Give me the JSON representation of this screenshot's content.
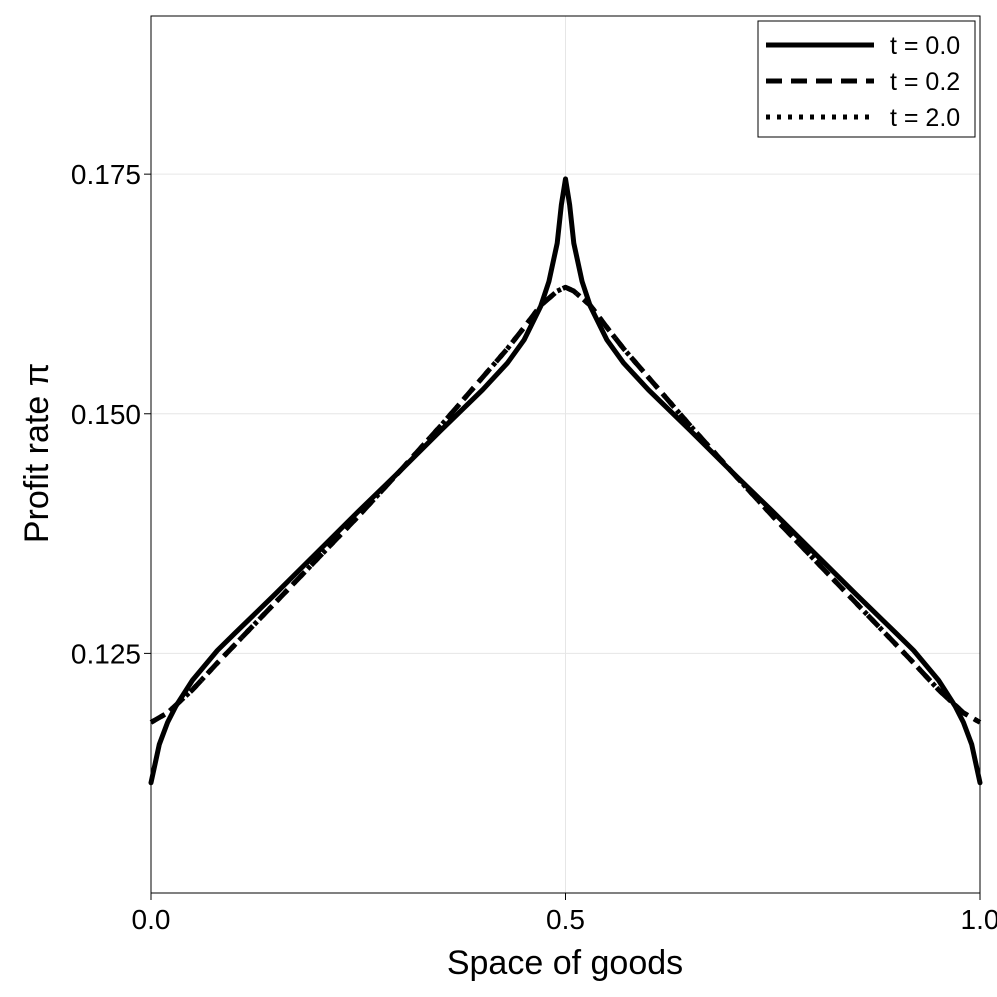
{
  "chart_data": {
    "type": "line",
    "xlabel": "Space of goods",
    "ylabel": "Profit rate π",
    "xlim": [
      0.0,
      1.0
    ],
    "ylim": [
      0.1,
      0.1915
    ],
    "xticks": [
      {
        "value": 0.0,
        "label": "0.0"
      },
      {
        "value": 0.5,
        "label": "0.5"
      },
      {
        "value": 1.0,
        "label": "1.0"
      }
    ],
    "yticks": [
      {
        "value": 0.125,
        "label": "0.125"
      },
      {
        "value": 0.15,
        "label": "0.150"
      },
      {
        "value": 0.175,
        "label": "0.175"
      }
    ],
    "grid": true,
    "legend_position": "top-right",
    "series": [
      {
        "name": "t = 0.0",
        "line_style": "solid",
        "color": "#000000",
        "points": [
          [
            0.0,
            0.1115
          ],
          [
            0.01,
            0.1155
          ],
          [
            0.02,
            0.1178
          ],
          [
            0.03,
            0.1195
          ],
          [
            0.05,
            0.1222
          ],
          [
            0.08,
            0.1253
          ],
          [
            0.1,
            0.127
          ],
          [
            0.15,
            0.1312
          ],
          [
            0.2,
            0.1355
          ],
          [
            0.25,
            0.1398
          ],
          [
            0.3,
            0.144
          ],
          [
            0.35,
            0.1483
          ],
          [
            0.4,
            0.1525
          ],
          [
            0.43,
            0.1553
          ],
          [
            0.45,
            0.1577
          ],
          [
            0.47,
            0.1612
          ],
          [
            0.48,
            0.1638
          ],
          [
            0.49,
            0.1678
          ],
          [
            0.495,
            0.1718
          ],
          [
            0.5,
            0.1745
          ],
          [
            0.505,
            0.1718
          ],
          [
            0.51,
            0.1678
          ],
          [
            0.52,
            0.1638
          ],
          [
            0.53,
            0.1612
          ],
          [
            0.55,
            0.1577
          ],
          [
            0.57,
            0.1553
          ],
          [
            0.6,
            0.1525
          ],
          [
            0.65,
            0.1483
          ],
          [
            0.7,
            0.144
          ],
          [
            0.75,
            0.1398
          ],
          [
            0.8,
            0.1355
          ],
          [
            0.85,
            0.1312
          ],
          [
            0.9,
            0.127
          ],
          [
            0.92,
            0.1253
          ],
          [
            0.95,
            0.1222
          ],
          [
            0.97,
            0.1195
          ],
          [
            0.98,
            0.1178
          ],
          [
            0.99,
            0.1155
          ],
          [
            1.0,
            0.1115
          ]
        ]
      },
      {
        "name": "t = 0.2",
        "line_style": "dashed",
        "color": "#000000",
        "points": [
          [
            0.0,
            0.1178
          ],
          [
            0.02,
            0.1188
          ],
          [
            0.05,
            0.1212
          ],
          [
            0.08,
            0.124
          ],
          [
            0.1,
            0.1258
          ],
          [
            0.15,
            0.1303
          ],
          [
            0.2,
            0.1348
          ],
          [
            0.25,
            0.1393
          ],
          [
            0.3,
            0.144
          ],
          [
            0.35,
            0.1488
          ],
          [
            0.4,
            0.1538
          ],
          [
            0.43,
            0.1568
          ],
          [
            0.45,
            0.159
          ],
          [
            0.47,
            0.1613
          ],
          [
            0.49,
            0.1628
          ],
          [
            0.5,
            0.1632
          ],
          [
            0.51,
            0.1628
          ],
          [
            0.53,
            0.1613
          ],
          [
            0.55,
            0.159
          ],
          [
            0.57,
            0.1568
          ],
          [
            0.6,
            0.1538
          ],
          [
            0.65,
            0.1488
          ],
          [
            0.7,
            0.144
          ],
          [
            0.75,
            0.1393
          ],
          [
            0.8,
            0.1348
          ],
          [
            0.85,
            0.1303
          ],
          [
            0.9,
            0.1258
          ],
          [
            0.92,
            0.124
          ],
          [
            0.95,
            0.1212
          ],
          [
            0.98,
            0.1188
          ],
          [
            1.0,
            0.1178
          ]
        ]
      },
      {
        "name": "t = 2.0",
        "line_style": "dotted",
        "color": "#000000",
        "points": [
          [
            0.0,
            0.1178
          ],
          [
            0.02,
            0.1188
          ],
          [
            0.05,
            0.1212
          ],
          [
            0.08,
            0.124
          ],
          [
            0.1,
            0.1258
          ],
          [
            0.15,
            0.1303
          ],
          [
            0.2,
            0.1348
          ],
          [
            0.25,
            0.1393
          ],
          [
            0.3,
            0.144
          ],
          [
            0.35,
            0.1488
          ],
          [
            0.4,
            0.1538
          ],
          [
            0.43,
            0.1568
          ],
          [
            0.45,
            0.159
          ],
          [
            0.47,
            0.1613
          ],
          [
            0.49,
            0.1628
          ],
          [
            0.5,
            0.1632
          ],
          [
            0.51,
            0.1628
          ],
          [
            0.53,
            0.1613
          ],
          [
            0.55,
            0.159
          ],
          [
            0.57,
            0.1568
          ],
          [
            0.6,
            0.1538
          ],
          [
            0.65,
            0.1488
          ],
          [
            0.7,
            0.144
          ],
          [
            0.75,
            0.1393
          ],
          [
            0.8,
            0.1348
          ],
          [
            0.85,
            0.1303
          ],
          [
            0.9,
            0.1258
          ],
          [
            0.92,
            0.124
          ],
          [
            0.95,
            0.1212
          ],
          [
            0.98,
            0.1188
          ],
          [
            1.0,
            0.1178
          ]
        ]
      }
    ]
  }
}
